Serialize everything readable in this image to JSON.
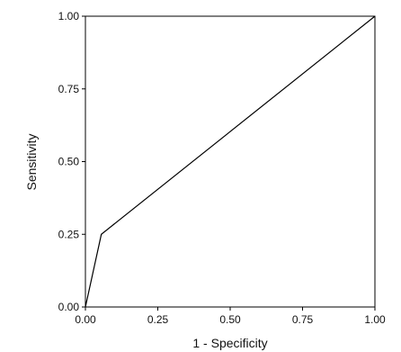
{
  "chart_data": {
    "type": "line",
    "title": "",
    "xlabel": "1 - Specificity",
    "ylabel": "Sensitivity",
    "xlim": [
      0,
      1
    ],
    "ylim": [
      0,
      1
    ],
    "x_ticks": [
      "0.00",
      "0.25",
      "0.50",
      "0.75",
      "1.00"
    ],
    "y_ticks": [
      "0.00",
      "0.25",
      "0.50",
      "0.75",
      "1.00"
    ],
    "grid": false,
    "legend": "none",
    "series": [
      {
        "x": [
          0.0,
          0.055,
          1.0
        ],
        "y": [
          0.0,
          0.25,
          1.0
        ]
      }
    ],
    "colors": {
      "line": "#000000",
      "axis": "#000000"
    }
  }
}
